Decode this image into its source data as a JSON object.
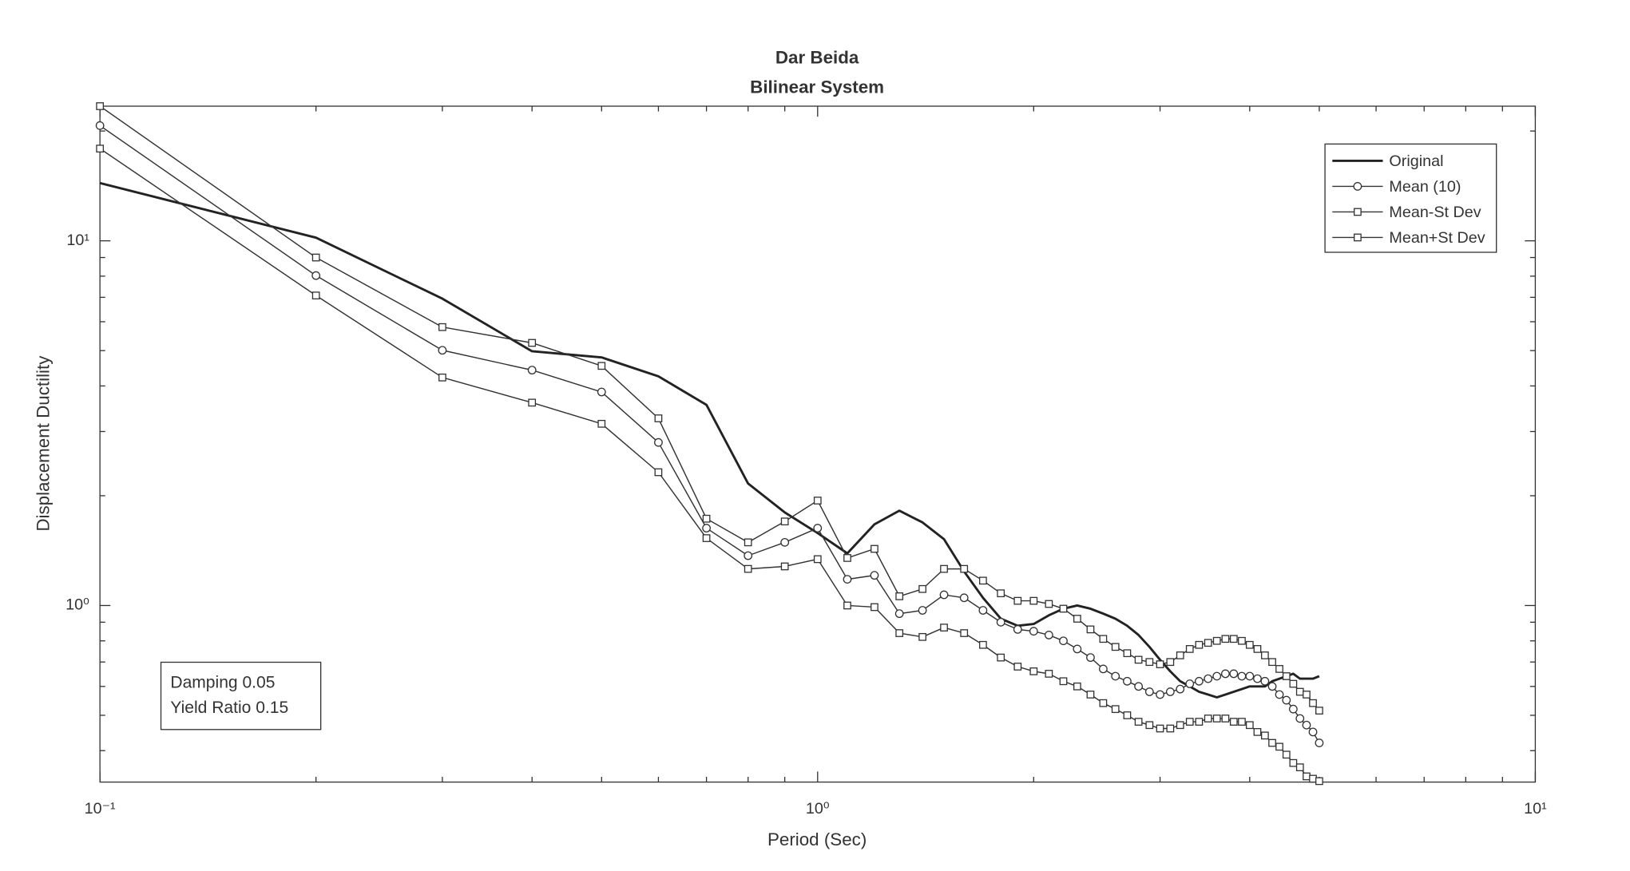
{
  "chart_data": {
    "type": "line",
    "title": "Dar Beida",
    "subtitle": "Bilinear System",
    "xlabel": "Period (Sec)",
    "ylabel": "Displacement Ductility",
    "xscale": "log",
    "yscale": "log",
    "xlim": [
      0.1,
      10
    ],
    "ylim": [
      0.328,
      23.4
    ],
    "xticks": [
      {
        "value": 0.1,
        "label": "10⁻¹"
      },
      {
        "value": 1,
        "label": "10⁰"
      },
      {
        "value": 10,
        "label": "10¹"
      }
    ],
    "yticks": [
      {
        "value": 1,
        "label": "10⁰"
      },
      {
        "value": 10,
        "label": "10¹"
      }
    ],
    "legend": "upper right",
    "annotation": [
      "Damping 0.05",
      "Yield Ratio 0.15"
    ],
    "x": [
      0.1,
      0.2,
      0.3,
      0.4,
      0.5,
      0.6,
      0.7,
      0.8,
      0.9,
      1.0,
      1.1,
      1.2,
      1.3,
      1.4,
      1.5,
      1.6,
      1.7,
      1.8,
      1.9,
      2.0,
      2.1,
      2.2,
      2.3,
      2.4,
      2.5,
      2.6,
      2.7,
      2.8,
      2.9,
      3.0,
      3.1,
      3.2,
      3.3,
      3.4,
      3.5,
      3.6,
      3.7,
      3.8,
      3.9,
      4.0,
      4.1,
      4.2,
      4.3,
      4.4,
      4.5,
      4.6,
      4.7,
      4.8,
      4.9,
      5.0
    ],
    "series": [
      {
        "name": "Original",
        "color": "#222222",
        "marker": "none",
        "linewidth": 2.2,
        "values": [
          14.4,
          10.2,
          6.94,
          4.98,
          4.79,
          4.25,
          3.55,
          2.16,
          1.8,
          1.58,
          1.39,
          1.67,
          1.82,
          1.69,
          1.52,
          1.24,
          1.05,
          0.92,
          0.88,
          0.89,
          0.94,
          0.98,
          1.0,
          0.98,
          0.95,
          0.92,
          0.88,
          0.83,
          0.77,
          0.71,
          0.66,
          0.62,
          0.6,
          0.58,
          0.57,
          0.56,
          0.57,
          0.58,
          0.59,
          0.6,
          0.6,
          0.6,
          0.62,
          0.63,
          0.64,
          0.65,
          0.63,
          0.63,
          0.63,
          0.64
        ]
      },
      {
        "name": "Mean (10)",
        "color": "#333333",
        "marker": "circle",
        "linewidth": 1.1,
        "values": [
          20.7,
          8.03,
          5.01,
          4.42,
          3.85,
          2.8,
          1.63,
          1.37,
          1.49,
          1.63,
          1.18,
          1.21,
          0.95,
          0.97,
          1.07,
          1.05,
          0.97,
          0.9,
          0.86,
          0.85,
          0.83,
          0.8,
          0.76,
          0.72,
          0.67,
          0.64,
          0.62,
          0.6,
          0.58,
          0.57,
          0.58,
          0.59,
          0.61,
          0.62,
          0.63,
          0.64,
          0.65,
          0.65,
          0.64,
          0.64,
          0.63,
          0.62,
          0.6,
          0.57,
          0.55,
          0.52,
          0.49,
          0.47,
          0.45,
          0.42
        ]
      },
      {
        "name": "Mean-St Dev",
        "color": "#333333",
        "marker": "square",
        "linewidth": 1.1,
        "values": [
          17.9,
          7.08,
          4.22,
          3.6,
          3.15,
          2.32,
          1.53,
          1.26,
          1.28,
          1.34,
          1.0,
          0.99,
          0.84,
          0.82,
          0.87,
          0.84,
          0.78,
          0.72,
          0.68,
          0.66,
          0.65,
          0.62,
          0.6,
          0.57,
          0.54,
          0.52,
          0.5,
          0.48,
          0.47,
          0.46,
          0.46,
          0.47,
          0.48,
          0.48,
          0.49,
          0.49,
          0.49,
          0.48,
          0.48,
          0.47,
          0.45,
          0.44,
          0.42,
          0.41,
          0.39,
          0.37,
          0.36,
          0.34,
          0.335,
          0.33
        ]
      },
      {
        "name": "Mean+St Dev",
        "color": "#333333",
        "marker": "square",
        "linewidth": 1.1,
        "values": [
          23.4,
          9.0,
          5.8,
          5.25,
          4.54,
          3.26,
          1.73,
          1.49,
          1.7,
          1.94,
          1.35,
          1.43,
          1.06,
          1.11,
          1.26,
          1.26,
          1.17,
          1.08,
          1.03,
          1.03,
          1.01,
          0.98,
          0.92,
          0.86,
          0.81,
          0.77,
          0.74,
          0.71,
          0.7,
          0.69,
          0.7,
          0.73,
          0.76,
          0.78,
          0.79,
          0.8,
          0.81,
          0.81,
          0.8,
          0.78,
          0.76,
          0.73,
          0.7,
          0.67,
          0.64,
          0.61,
          0.58,
          0.57,
          0.54,
          0.515
        ]
      }
    ]
  }
}
